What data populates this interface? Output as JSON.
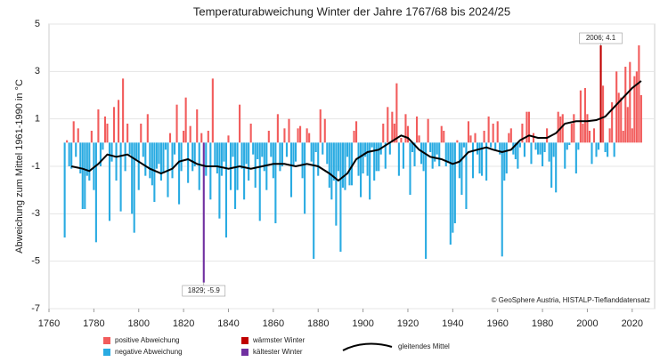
{
  "chart_data": {
    "type": "bar",
    "title": "Temperaturabweichung Winter der Jahre 1767/68 bis 2024/25",
    "y_label": "Abweichung zum Mittel 1961-1990 in °C",
    "source": "© GeoSphere Austria, HISTALP-Tieflanddatensatz",
    "annotations": [
      {
        "text": "2006; 4.1"
      },
      {
        "text": "1829; -5.9"
      }
    ],
    "legend": [
      "positive Abweichung",
      "negative Abweichung",
      "wärmster Winter",
      "kältester Winter"
    ],
    "positive_color": "#f25c5c",
    "negative_color": "#29abe2",
    "max_color": "#c00000",
    "min_color": "#7030a0",
    "xlim": [
      1760,
      2030
    ],
    "xticks": [
      1760,
      1780,
      1800,
      1820,
      1840,
      1860,
      1880,
      1900,
      1920,
      1940,
      1960,
      1980,
      2000,
      2020
    ],
    "ylim": [
      -7,
      5
    ],
    "yticks": [
      -7,
      -5,
      -3,
      -1,
      1,
      3,
      5
    ],
    "grid": true,
    "x": [
      1767,
      1768,
      1769,
      1770,
      1771,
      1772,
      1773,
      1774,
      1775,
      1776,
      1777,
      1778,
      1779,
      1780,
      1781,
      1782,
      1783,
      1784,
      1785,
      1786,
      1787,
      1788,
      1789,
      1790,
      1791,
      1792,
      1793,
      1794,
      1795,
      1796,
      1797,
      1798,
      1799,
      1800,
      1801,
      1802,
      1803,
      1804,
      1805,
      1806,
      1807,
      1808,
      1809,
      1810,
      1811,
      1812,
      1813,
      1814,
      1815,
      1816,
      1817,
      1818,
      1819,
      1820,
      1821,
      1822,
      1823,
      1824,
      1825,
      1826,
      1827,
      1828,
      1829,
      1830,
      1831,
      1832,
      1833,
      1834,
      1835,
      1836,
      1837,
      1838,
      1839,
      1840,
      1841,
      1842,
      1843,
      1844,
      1845,
      1846,
      1847,
      1848,
      1849,
      1850,
      1851,
      1852,
      1853,
      1854,
      1855,
      1856,
      1857,
      1858,
      1859,
      1860,
      1861,
      1862,
      1863,
      1864,
      1865,
      1866,
      1867,
      1868,
      1869,
      1870,
      1871,
      1872,
      1873,
      1874,
      1875,
      1876,
      1877,
      1878,
      1879,
      1880,
      1881,
      1882,
      1883,
      1884,
      1885,
      1886,
      1887,
      1888,
      1889,
      1890,
      1891,
      1892,
      1893,
      1894,
      1895,
      1896,
      1897,
      1898,
      1899,
      1900,
      1901,
      1902,
      1903,
      1904,
      1905,
      1906,
      1907,
      1908,
      1909,
      1910,
      1911,
      1912,
      1913,
      1914,
      1915,
      1916,
      1917,
      1918,
      1919,
      1920,
      1921,
      1922,
      1923,
      1924,
      1925,
      1926,
      1927,
      1928,
      1929,
      1930,
      1931,
      1932,
      1933,
      1934,
      1935,
      1936,
      1937,
      1938,
      1939,
      1940,
      1941,
      1942,
      1943,
      1944,
      1945,
      1946,
      1947,
      1948,
      1949,
      1950,
      1951,
      1952,
      1953,
      1954,
      1955,
      1956,
      1957,
      1958,
      1959,
      1960,
      1961,
      1962,
      1963,
      1964,
      1965,
      1966,
      1967,
      1968,
      1969,
      1970,
      1971,
      1972,
      1973,
      1974,
      1975,
      1976,
      1977,
      1978,
      1979,
      1980,
      1981,
      1982,
      1983,
      1984,
      1985,
      1986,
      1987,
      1988,
      1989,
      1990,
      1991,
      1992,
      1993,
      1994,
      1995,
      1996,
      1997,
      1998,
      1999,
      2000,
      2001,
      2002,
      2003,
      2004,
      2005,
      2006,
      2007,
      2008,
      2009,
      2010,
      2011,
      2012,
      2013,
      2014,
      2015,
      2016,
      2017,
      2018,
      2019,
      2020,
      2021,
      2022,
      2023,
      2024
    ],
    "values": [
      -4.0,
      0.1,
      -1.0,
      -1.1,
      0.9,
      -0.6,
      0.6,
      -1.3,
      -2.8,
      -2.8,
      -1.4,
      -1.6,
      0.5,
      -2.0,
      -4.2,
      1.4,
      -1.0,
      -0.3,
      1.1,
      0.8,
      -3.3,
      -0.8,
      1.5,
      -1.6,
      1.8,
      -2.9,
      2.7,
      -1.2,
      0.8,
      -0.5,
      -3.0,
      -3.8,
      -0.7,
      -2.0,
      0.8,
      -0.6,
      -1.4,
      1.2,
      -1.5,
      -1.8,
      -2.5,
      -1.1,
      -0.9,
      -1.6,
      -1.3,
      -0.3,
      -2.3,
      0.4,
      -1.5,
      -0.5,
      1.6,
      -2.6,
      -1.2,
      0.5,
      1.9,
      -1.7,
      0.7,
      -1.2,
      -1.0,
      1.4,
      -2.0,
      0.4,
      -5.9,
      -1.4,
      0.5,
      -2.4,
      2.7,
      -1.0,
      -1.3,
      -3.2,
      -1.4,
      -0.8,
      -4.0,
      0.3,
      -2.0,
      -0.6,
      -2.8,
      -2.0,
      1.6,
      -1.1,
      -2.4,
      -0.9,
      -1.6,
      0.8,
      -0.5,
      -1.9,
      -0.7,
      -3.3,
      -0.6,
      -1.2,
      -2.0,
      0.5,
      -0.6,
      -1.5,
      -3.4,
      1.2,
      -1.2,
      -1.0,
      0.6,
      -0.6,
      1.0,
      -2.3,
      -1.0,
      -0.8,
      0.6,
      0.7,
      -1.5,
      -3.0,
      0.6,
      0.4,
      -0.8,
      -4.9,
      -0.4,
      -1.4,
      1.4,
      -0.5,
      1.0,
      -0.9,
      -1.9,
      -2.4,
      -1.6,
      -3.5,
      -1.2,
      -4.6,
      -1.9,
      -2.0,
      -0.6,
      -1.8,
      -1.8,
      0.5,
      0.9,
      -1.4,
      -2.3,
      -1.3,
      -0.6,
      -1.4,
      -2.4,
      -0.2,
      -1.6,
      -1.2,
      -1.2,
      -0.5,
      0.8,
      -1.1,
      1.5,
      -0.5,
      1.3,
      0.8,
      2.5,
      -1.4,
      0.2,
      -1.1,
      1.2,
      0.7,
      -2.2,
      -0.4,
      -1.0,
      1.1,
      0.3,
      -0.9,
      -1.2,
      -4.9,
      1.0,
      -0.4,
      -1.1,
      -0.8,
      -0.5,
      -1.0,
      0.7,
      0.5,
      -1.0,
      -0.8,
      -4.3,
      -3.8,
      -3.4,
      0.1,
      -1.5,
      -2.2,
      -0.2,
      -2.8,
      0.9,
      0.3,
      -1.5,
      0.4,
      -0.5,
      -1.3,
      -1.4,
      0.5,
      -1.6,
      1.1,
      -0.2,
      0.8,
      -0.3,
      0.9,
      -0.5,
      -4.8,
      -1.6,
      -1.3,
      0.4,
      0.6,
      -0.5,
      -0.7,
      -1.1,
      -0.2,
      0.8,
      -0.6,
      1.3,
      1.3,
      -0.9,
      0.4,
      -0.3,
      -0.5,
      -0.5,
      -1.0,
      -0.4,
      0.6,
      -0.8,
      -1.9,
      -0.6,
      -2.1,
      1.3,
      1.1,
      1.2,
      -1.1,
      -0.3,
      -0.1,
      0.8,
      1.2,
      -1.3,
      -0.3,
      2.2,
      0.8,
      2.3,
      1.2,
      0.5,
      -0.9,
      0.6,
      -0.6,
      -0.3,
      4.1,
      2.4,
      -0.4,
      -0.6,
      0.6,
      1.7,
      -0.6,
      3.0,
      2.1,
      1.9,
      0.5,
      3.2,
      1.5,
      3.4,
      0.6,
      2.8,
      3.0,
      4.1,
      2.0
    ],
    "smooth": {
      "name": "gleitendes Mittel",
      "color": "#000000",
      "x": [
        1770,
        1775,
        1778,
        1782,
        1786,
        1790,
        1795,
        1800,
        1805,
        1810,
        1815,
        1818,
        1822,
        1826,
        1830,
        1835,
        1840,
        1845,
        1850,
        1855,
        1860,
        1865,
        1870,
        1875,
        1880,
        1885,
        1889,
        1893,
        1897,
        1902,
        1907,
        1912,
        1917,
        1920,
        1925,
        1930,
        1935,
        1940,
        1943,
        1947,
        1951,
        1955,
        1958,
        1962,
        1966,
        1970,
        1974,
        1978,
        1982,
        1986,
        1990,
        1995,
        2000,
        2004,
        2008,
        2012,
        2016,
        2020,
        2024
      ],
      "values": [
        -1.0,
        -1.1,
        -1.2,
        -0.9,
        -0.5,
        -0.6,
        -0.5,
        -0.8,
        -1.1,
        -1.3,
        -1.1,
        -0.8,
        -0.7,
        -0.9,
        -1.0,
        -1.0,
        -1.1,
        -1.0,
        -1.1,
        -1.0,
        -0.9,
        -0.9,
        -1.0,
        -0.9,
        -1.0,
        -1.3,
        -1.6,
        -1.3,
        -0.7,
        -0.4,
        -0.3,
        0.0,
        0.3,
        0.2,
        -0.3,
        -0.6,
        -0.7,
        -0.9,
        -0.8,
        -0.4,
        -0.3,
        -0.2,
        -0.3,
        -0.4,
        -0.3,
        0.1,
        0.3,
        0.2,
        0.2,
        0.4,
        0.8,
        0.9,
        0.9,
        0.95,
        1.1,
        1.5,
        1.9,
        2.3,
        2.6
      ]
    }
  }
}
